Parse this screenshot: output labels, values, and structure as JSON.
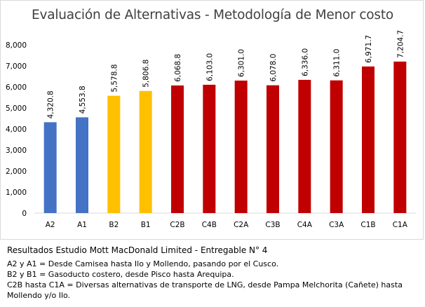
{
  "chart_data": {
    "type": "bar",
    "title": "Evaluación de Alternativas - Metodología de Menor costo",
    "categories": [
      "A2",
      "A1",
      "B2",
      "B1",
      "C2B",
      "C4B",
      "C2A",
      "C3B",
      "C4A",
      "C3A",
      "C1B",
      "C1A"
    ],
    "values": [
      4320.8,
      4553.8,
      5578.8,
      5806.8,
      6068.8,
      6103.0,
      6301.0,
      6078.0,
      6336.0,
      6311.0,
      6971.7,
      7204.7
    ],
    "data_labels": [
      "4,320.8",
      "4,553.8",
      "5,578.8",
      "5,806.8",
      "6,068.8",
      "6,103.0",
      "6,301.0",
      "6,078.0",
      "6,336.0",
      "6,311.0",
      "6,971.7",
      "7,204.7"
    ],
    "colors": [
      "#4472c4",
      "#4472c4",
      "#ffc000",
      "#ffc000",
      "#c00000",
      "#c00000",
      "#c00000",
      "#c00000",
      "#c00000",
      "#c00000",
      "#c00000",
      "#c00000"
    ],
    "ylim": [
      0,
      8000
    ],
    "yticks": [
      0,
      1000,
      2000,
      3000,
      4000,
      5000,
      6000,
      7000,
      8000
    ],
    "ytick_labels": [
      "0",
      "1,000",
      "2,000",
      "3,000",
      "4,000",
      "5,000",
      "6,000",
      "7,000",
      "8,000"
    ],
    "grid": false,
    "xlabel": "",
    "ylabel": ""
  },
  "notes": {
    "heading": "Resultados Estudio Mott MacDonald Limited - Entregable N° 4",
    "lines": [
      "A2 y A1 = Desde Camisea hasta Ilo y Mollendo, pasando por el Cusco.",
      "B2 y B1 = Gasoducto costero, desde Pisco hasta Arequipa.",
      "C2B hasta C1A = Diversas alternativas de transporte de LNG, desde Pampa Melchorita (Cañete) hasta Mollendo y/o Ilo."
    ]
  }
}
